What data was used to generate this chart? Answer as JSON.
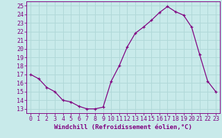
{
  "x": [
    0,
    1,
    2,
    3,
    4,
    5,
    6,
    7,
    8,
    9,
    10,
    11,
    12,
    13,
    14,
    15,
    16,
    17,
    18,
    19,
    20,
    21,
    22,
    23
  ],
  "y": [
    17.0,
    16.5,
    15.5,
    15.0,
    14.0,
    13.8,
    13.3,
    13.0,
    13.0,
    13.2,
    16.2,
    18.0,
    20.2,
    21.8,
    22.5,
    23.3,
    24.2,
    24.9,
    24.3,
    23.9,
    22.5,
    19.3,
    16.2,
    15.0
  ],
  "line_color": "#800080",
  "marker": "+",
  "bg_color": "#c8eaea",
  "grid_color": "#b0d8d8",
  "xlabel": "Windchill (Refroidissement éolien,°C)",
  "xlabel_color": "#800080",
  "tick_color": "#800080",
  "ylim": [
    12.5,
    25.5
  ],
  "xlim": [
    -0.5,
    23.5
  ],
  "yticks": [
    13,
    14,
    15,
    16,
    17,
    18,
    19,
    20,
    21,
    22,
    23,
    24,
    25
  ],
  "xticks": [
    0,
    1,
    2,
    3,
    4,
    5,
    6,
    7,
    8,
    9,
    10,
    11,
    12,
    13,
    14,
    15,
    16,
    17,
    18,
    19,
    20,
    21,
    22,
    23
  ],
  "spine_color": "#800080",
  "font_size_label": 6.5,
  "font_size_tick": 6.0
}
